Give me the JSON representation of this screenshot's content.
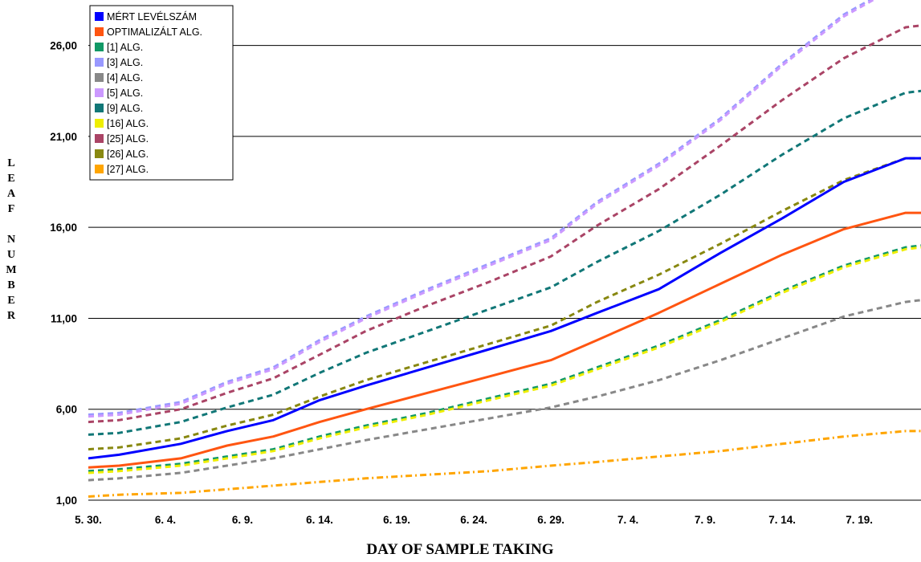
{
  "chart_data": {
    "type": "line",
    "xlabel": "DAY OF SAMPLE TAKING",
    "ylabel": "LEAF NUMBER",
    "ylim": [
      1,
      28.5
    ],
    "yticks": [
      1,
      6,
      11,
      16,
      21,
      26
    ],
    "ytick_labels": [
      "1,00",
      "6,00",
      "11,00",
      "16,00",
      "21,00",
      "26,00"
    ],
    "xlim": [
      0,
      54
    ],
    "xticks": [
      0,
      5,
      10,
      15,
      20,
      25,
      30,
      35,
      40,
      45,
      50
    ],
    "xtick_labels": [
      "5. 30.",
      "6. 4.",
      "6. 9.",
      "6. 14.",
      "6. 19.",
      "6. 24.",
      "6. 29.",
      "7. 4.",
      "7. 9.",
      "7. 14.",
      "7. 19."
    ],
    "grid": "horizontal",
    "legend_position": "top-left",
    "x": [
      0,
      2,
      6,
      9,
      12,
      15,
      18,
      22,
      26,
      30,
      33,
      37,
      41,
      45,
      49,
      53,
      54
    ],
    "series": [
      {
        "name": "MÉRT LEVÉLSZÁM",
        "color": "#0000FF",
        "dash": "solid",
        "values": [
          3.3,
          3.5,
          4.1,
          4.8,
          5.4,
          6.5,
          7.3,
          8.3,
          9.3,
          10.3,
          11.3,
          12.6,
          14.6,
          16.5,
          18.5,
          19.8,
          19.8
        ]
      },
      {
        "name": "OPTIMALIZÁLT ALG.",
        "color": "#FF5511",
        "dash": "solid",
        "values": [
          2.8,
          2.9,
          3.3,
          4.0,
          4.5,
          5.3,
          6.0,
          6.9,
          7.8,
          8.7,
          9.8,
          11.3,
          12.9,
          14.5,
          15.9,
          16.8,
          16.8
        ]
      },
      {
        "name": "[1] ALG.",
        "color": "#119966",
        "dash": "dash",
        "values": [
          2.6,
          2.7,
          3.0,
          3.4,
          3.8,
          4.5,
          5.1,
          5.8,
          6.6,
          7.4,
          8.3,
          9.5,
          10.9,
          12.5,
          13.9,
          14.9,
          15.0
        ]
      },
      {
        "name": "[3] ALG.",
        "color": "#9999FF",
        "dash": "dash",
        "values": [
          5.7,
          5.8,
          6.4,
          7.5,
          8.3,
          9.8,
          11.1,
          12.6,
          14.0,
          15.4,
          17.4,
          19.5,
          22.0,
          25.0,
          27.7,
          29.6,
          29.6
        ]
      },
      {
        "name": "[4] ALG.",
        "color": "#888888",
        "dash": "dash",
        "values": [
          2.1,
          2.2,
          2.5,
          2.9,
          3.3,
          3.8,
          4.3,
          4.9,
          5.5,
          6.1,
          6.7,
          7.6,
          8.7,
          9.9,
          11.1,
          11.9,
          12.0
        ]
      },
      {
        "name": "[5] ALG.",
        "color": "#CC99FF",
        "dash": "dash",
        "values": [
          5.6,
          5.7,
          6.3,
          7.4,
          8.2,
          9.7,
          11.0,
          12.5,
          13.9,
          15.3,
          17.3,
          19.4,
          21.9,
          24.9,
          27.6,
          29.5,
          29.5
        ]
      },
      {
        "name": "[9] ALG.",
        "color": "#117777",
        "dash": "dash",
        "values": [
          4.6,
          4.7,
          5.3,
          6.1,
          6.8,
          8.0,
          9.1,
          10.3,
          11.5,
          12.7,
          14.1,
          15.8,
          17.8,
          20.0,
          22.0,
          23.4,
          23.5
        ]
      },
      {
        "name": "[16] ALG.",
        "color": "#EEEE00",
        "dash": "dash",
        "values": [
          2.5,
          2.6,
          2.9,
          3.3,
          3.7,
          4.4,
          5.0,
          5.7,
          6.5,
          7.3,
          8.2,
          9.4,
          10.8,
          12.4,
          13.8,
          14.8,
          14.9
        ]
      },
      {
        "name": "[25] ALG.",
        "color": "#AA4466",
        "dash": "dash",
        "values": [
          5.3,
          5.4,
          6.0,
          6.9,
          7.7,
          9.0,
          10.3,
          11.7,
          13.0,
          14.4,
          16.1,
          18.1,
          20.5,
          23.0,
          25.3,
          27.0,
          27.1
        ]
      },
      {
        "name": "[26] ALG.",
        "color": "#888811",
        "dash": "dash",
        "values": [
          3.8,
          3.9,
          4.4,
          5.1,
          5.7,
          6.7,
          7.6,
          8.6,
          9.6,
          10.6,
          11.9,
          13.4,
          15.1,
          16.9,
          18.6,
          19.8,
          19.8
        ]
      },
      {
        "name": "[27] ALG.",
        "color": "#FFA500",
        "dash": "dashdot",
        "values": [
          1.2,
          1.3,
          1.4,
          1.6,
          1.8,
          2.0,
          2.2,
          2.4,
          2.6,
          2.9,
          3.1,
          3.4,
          3.7,
          4.1,
          4.5,
          4.8,
          4.8
        ]
      }
    ]
  }
}
